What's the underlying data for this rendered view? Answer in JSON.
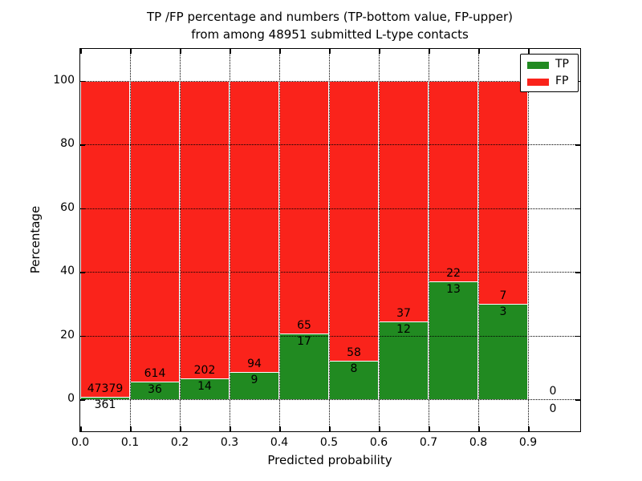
{
  "header": {
    "title_line1": "TP /FP percentage and numbers (TP-bottom value, FP-upper)",
    "title_line2": "from among 48951 submitted L-type contacts"
  },
  "chart_data": {
    "type": "bar",
    "stacked": true,
    "title": "TP /FP percentage and numbers (TP-bottom value, FP-upper)\nfrom among 48951 submitted L-type contacts",
    "xlabel": "Predicted probability",
    "ylabel": "Percentage",
    "xlim": [
      0,
      1.005
    ],
    "ylim": [
      -10,
      110
    ],
    "grid": "dotted",
    "legend_position": "upper-right",
    "bin_width": 0.1,
    "total_contacts": 48951,
    "xtick_labels": [
      "0.0",
      "0.1",
      "0.2",
      "0.3",
      "0.4",
      "0.5",
      "0.6",
      "0.7",
      "0.8",
      "0.9"
    ],
    "xtick_values": [
      0.0,
      0.1,
      0.2,
      0.3,
      0.4,
      0.5,
      0.6,
      0.7,
      0.8,
      0.9
    ],
    "ytick_labels": [
      "0",
      "20",
      "40",
      "60",
      "80",
      "100"
    ],
    "ytick_values": [
      0,
      20,
      40,
      60,
      80,
      100
    ],
    "series": [
      {
        "name": "TP",
        "color": "#218a21"
      },
      {
        "name": "FP",
        "color": "#fa231b"
      }
    ],
    "bins": [
      {
        "range": "0.0-0.1",
        "x0": 0.0,
        "tp_count": 361,
        "fp_count": 47379,
        "tp_pct": 0.76,
        "fp_pct": 99.24,
        "empty": false
      },
      {
        "range": "0.1-0.2",
        "x0": 0.1,
        "tp_count": 36,
        "fp_count": 614,
        "tp_pct": 5.54,
        "fp_pct": 94.46,
        "empty": false
      },
      {
        "range": "0.2-0.3",
        "x0": 0.2,
        "tp_count": 14,
        "fp_count": 202,
        "tp_pct": 6.48,
        "fp_pct": 93.52,
        "empty": false
      },
      {
        "range": "0.3-0.4",
        "x0": 0.3,
        "tp_count": 9,
        "fp_count": 94,
        "tp_pct": 8.74,
        "fp_pct": 91.26,
        "empty": false
      },
      {
        "range": "0.4-0.5",
        "x0": 0.4,
        "tp_count": 17,
        "fp_count": 65,
        "tp_pct": 20.73,
        "fp_pct": 79.27,
        "empty": false
      },
      {
        "range": "0.5-0.6",
        "x0": 0.5,
        "tp_count": 8,
        "fp_count": 58,
        "tp_pct": 12.12,
        "fp_pct": 87.88,
        "empty": false
      },
      {
        "range": "0.6-0.7",
        "x0": 0.6,
        "tp_count": 12,
        "fp_count": 37,
        "tp_pct": 24.49,
        "fp_pct": 75.51,
        "empty": false
      },
      {
        "range": "0.7-0.8",
        "x0": 0.7,
        "tp_count": 13,
        "fp_count": 22,
        "tp_pct": 37.14,
        "fp_pct": 62.86,
        "empty": false
      },
      {
        "range": "0.8-0.9",
        "x0": 0.8,
        "tp_count": 3,
        "fp_count": 7,
        "tp_pct": 30.0,
        "fp_pct": 70.0,
        "empty": false
      },
      {
        "range": "0.9-1.0",
        "x0": 0.9,
        "tp_count": 0,
        "fp_count": 0,
        "tp_pct": 0,
        "fp_pct": 0,
        "empty": true
      }
    ]
  }
}
